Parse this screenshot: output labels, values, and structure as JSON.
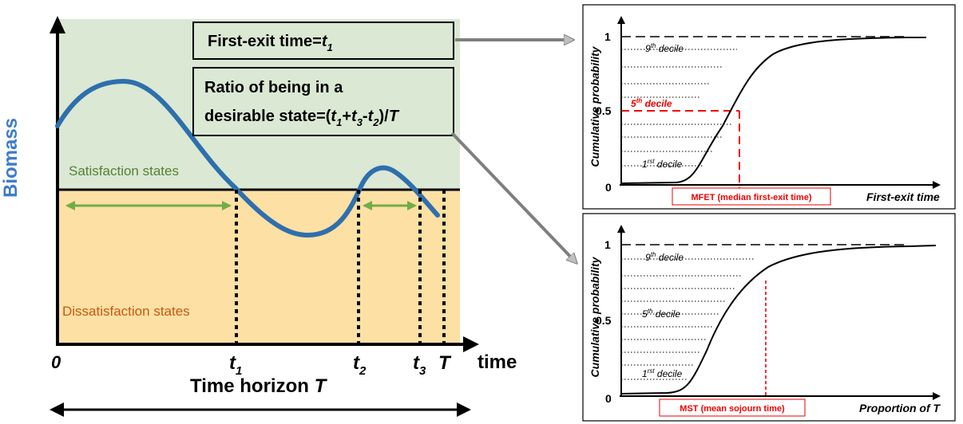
{
  "left_diagram": {
    "y_axis_label": "Biomass",
    "x_axis_label": "time",
    "horizon_label_prefix": "Time horizon ",
    "horizon_label_var": "T",
    "satisfaction_label": "Satisfaction states",
    "dissatisfaction_label": "Dissatisfaction states",
    "origin_label": "0",
    "t1_base": "t",
    "t1_sub": "1",
    "t2_base": "t",
    "t2_sub": "2",
    "t3_base": "t",
    "t3_sub": "3",
    "T_label": "T",
    "box1_text": "First-exit time=",
    "box1_var_base": "t",
    "box1_var_sub": "1",
    "box2_line1": "Ratio of being in a",
    "box2_line2_prefix": "desirable state=(",
    "box2_t1": "t",
    "box2_s1": "1",
    "box2_plus": "+",
    "box2_t3": "t",
    "box2_s3": "3",
    "box2_minus": "-",
    "box2_t2": "t",
    "box2_s2": "2",
    "box2_suffix": ")/",
    "box2_T": "T",
    "colors": {
      "satisfaction": "#dbe8d4",
      "dissatisfaction": "#fde0a4",
      "curve": "#2e6fad",
      "arrows": "#70ad47",
      "ylabel": "#3d7cc9"
    }
  },
  "top_chart": {
    "ylabel": "Cumulative probability",
    "xlabel": "First-exit time",
    "tick_1": "1",
    "tick_05": "0.5",
    "tick_0": "0",
    "decile9_base": "9",
    "decile9_sup": "th",
    "decile9_rest": " decile",
    "decile5_base": "5",
    "decile5_sup": "th",
    "decile5_rest": " decile",
    "decile1_base": "1",
    "decile1_sup": "rst",
    "decile1_rest": " decile",
    "marker_label": "MFET (median first-exit time)"
  },
  "bottom_chart": {
    "ylabel": "Cumulative probability",
    "xlabel": "Proportion of T",
    "tick_1": "1",
    "tick_05": "0.5",
    "tick_0": "0",
    "decile9_base": "9",
    "decile9_sup": "th",
    "decile9_rest": " decile",
    "decile5_base": "5",
    "decile5_sup": "th",
    "decile5_rest": " decile",
    "decile1_base": "1",
    "decile1_sup": "rst",
    "decile1_rest": " decile",
    "marker_label": "MST (mean sojourn time)"
  }
}
